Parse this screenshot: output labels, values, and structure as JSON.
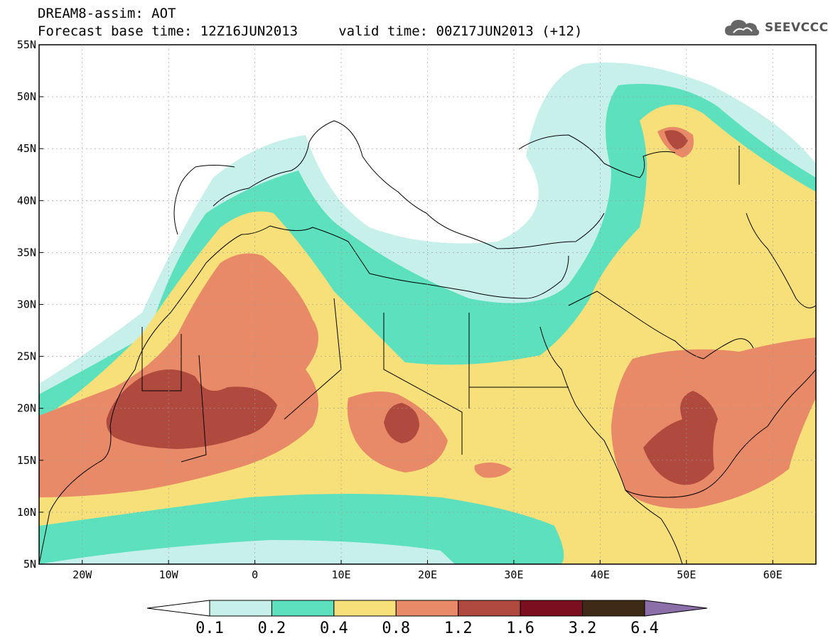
{
  "title": {
    "line1": "DREAM8-assim: AOT",
    "line2": "Forecast base time: 12Z16JUN2013     valid time: 00Z17JUN2013 (+12)"
  },
  "logo": {
    "text": "SEEVCCC",
    "icon": "cloud-icon"
  },
  "map": {
    "lon_labels": [
      "20W",
      "10W",
      "0",
      "10E",
      "20E",
      "30E",
      "40E",
      "50E",
      "60E"
    ],
    "lat_labels": [
      "55N",
      "50N",
      "45N",
      "40N",
      "35N",
      "30N",
      "25N",
      "20N",
      "15N",
      "10N",
      "5N"
    ],
    "field": "Aerosol optical thickness (AOT) dust forecast"
  },
  "colorbar": {
    "labels": [
      "0.1",
      "0.2",
      "0.4",
      "0.8",
      "1.2",
      "1.6",
      "3.2",
      "6.4"
    ],
    "colors": [
      "#ffffff",
      "#c7f0eb",
      "#5de0bd",
      "#f7e07a",
      "#e88a67",
      "#b04a3e",
      "#7b0f20",
      "#3f2a16",
      "#8c6fa8"
    ]
  }
}
